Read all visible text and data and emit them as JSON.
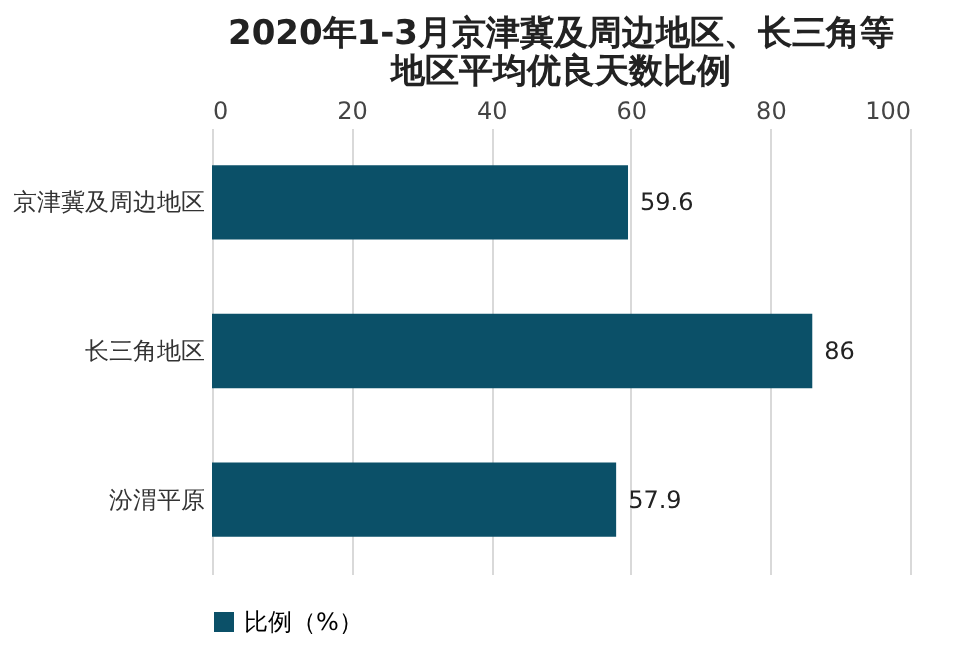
{
  "chart_data": {
    "type": "bar",
    "orientation": "horizontal",
    "title": "2020年1-3月京津冀及周边地区、长三角等地区平均优良天数比例",
    "categories": [
      "京津冀及周边地区",
      "长三角地区",
      "汾渭平原"
    ],
    "series": [
      {
        "name": "比例（%）",
        "color": "#0b5068",
        "values": [
          59.6,
          86,
          57.9
        ]
      }
    ],
    "xlim": [
      0,
      100
    ],
    "xticks": [
      0,
      20,
      40,
      60,
      80,
      100
    ],
    "grid": "x",
    "legend": "bottom",
    "data_labels": true
  }
}
